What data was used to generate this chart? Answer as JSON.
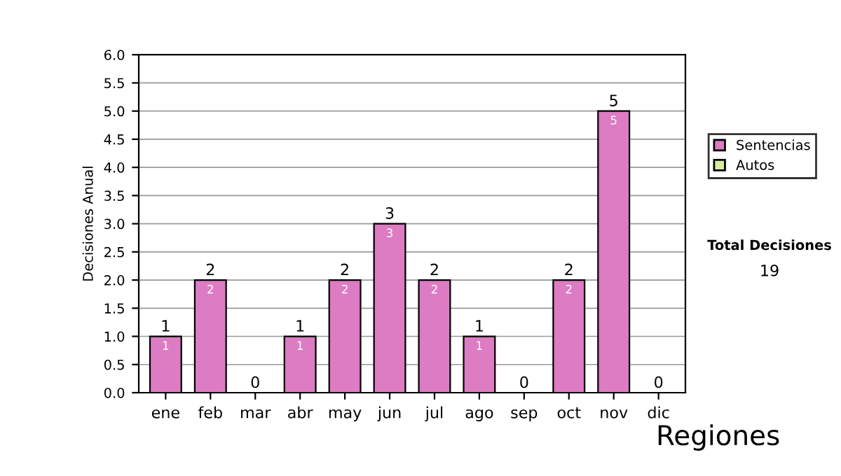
{
  "chart_data": {
    "type": "bar",
    "stacked": true,
    "ylabel": "Decisiones Anual",
    "categories": [
      "ene",
      "feb",
      "mar",
      "abr",
      "may",
      "jun",
      "jul",
      "ago",
      "sep",
      "oct",
      "nov",
      "dic"
    ],
    "series": [
      {
        "name": "Sentencias",
        "color": "#dd7bc3",
        "values": [
          1,
          2,
          0,
          1,
          2,
          3,
          2,
          1,
          0,
          2,
          5,
          0
        ],
        "value_labels": [
          "1",
          "2",
          null,
          "1",
          "2",
          "3",
          "2",
          "1",
          null,
          "2",
          "5",
          null
        ]
      },
      {
        "name": "Autos",
        "color": "#d8eca0",
        "values": [
          0,
          0,
          0,
          0,
          0,
          0,
          0,
          0,
          0,
          0,
          0,
          0
        ]
      }
    ],
    "totals": [
      "1",
      "2",
      "0",
      "1",
      "2",
      "3",
      "2",
      "1",
      "0",
      "2",
      "5",
      "0"
    ],
    "ylim": [
      0,
      6
    ],
    "yticks": [
      "0.0",
      "0.5",
      "1.0",
      "1.5",
      "2.0",
      "2.5",
      "3.0",
      "3.5",
      "4.0",
      "4.5",
      "5.0",
      "5.5",
      "6.0"
    ],
    "grid": "y",
    "legend": "right",
    "annotations": [
      "Total Decisiones",
      "19",
      "Regiones"
    ]
  }
}
